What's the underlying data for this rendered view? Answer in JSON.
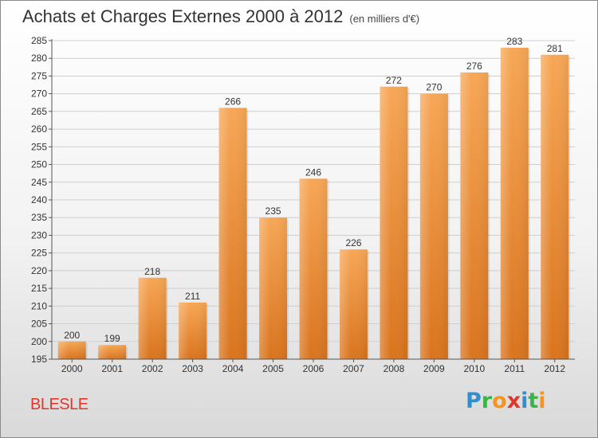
{
  "header": {
    "title": "Achats et Charges Externes 2000 à 2012",
    "subtitle": "(en milliers d'€)"
  },
  "footer": {
    "commune": "BLESLE",
    "brand_letters": [
      "P",
      "r",
      "o",
      "x",
      "i",
      "t",
      "i"
    ],
    "brand_colors": [
      "#2f8fd0",
      "#39b54a",
      "#f7931e",
      "#e0362a",
      "#2f8fd0",
      "#39b54a",
      "#f7931e"
    ]
  },
  "colors": {
    "bar_top": "#f7a756",
    "bar_bottom": "#d9741e",
    "grid": "#cfcfcf",
    "commune": "#e0362a"
  },
  "chart_data": {
    "type": "bar",
    "title": "Achats et Charges Externes 2000 à 2012",
    "subtitle": "(en milliers d'€)",
    "categories": [
      "2000",
      "2001",
      "2002",
      "2003",
      "2004",
      "2005",
      "2006",
      "2007",
      "2008",
      "2009",
      "2010",
      "2011",
      "2012"
    ],
    "values": [
      200,
      199,
      218,
      211,
      266,
      235,
      246,
      226,
      272,
      270,
      276,
      283,
      281
    ],
    "data_labels": [
      "200",
      "199",
      "218",
      "211",
      "266",
      "235",
      "246",
      "226",
      "272",
      "270",
      "276",
      "283",
      "281"
    ],
    "yticks": [
      "195",
      "200",
      "205",
      "210",
      "215",
      "220",
      "225",
      "230",
      "235",
      "240",
      "245",
      "250",
      "255",
      "260",
      "265",
      "270",
      "275",
      "280",
      "285"
    ],
    "ylim": [
      195,
      285
    ],
    "xlabel": "",
    "ylabel": "",
    "grid": true
  }
}
